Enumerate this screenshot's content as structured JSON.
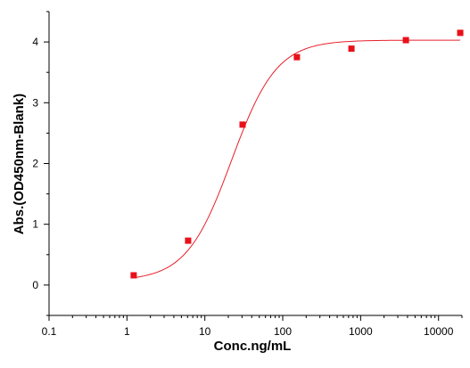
{
  "chart_data": {
    "type": "scatter",
    "title": "",
    "xlabel": "Conc.ng/mL",
    "ylabel": "Abs.(OD450nm-Blank)",
    "x_scale": "log",
    "xlim": [
      0.1,
      20000
    ],
    "ylim": [
      -0.5,
      4.5
    ],
    "x_ticks": [
      {
        "value": 0.1,
        "label": "0.1"
      },
      {
        "value": 1,
        "label": "1"
      },
      {
        "value": 10,
        "label": "10"
      },
      {
        "value": 100,
        "label": "100"
      },
      {
        "value": 1000,
        "label": "1000"
      },
      {
        "value": 10000,
        "label": "10000"
      }
    ],
    "y_ticks": [
      {
        "value": 0,
        "label": "0"
      },
      {
        "value": 1,
        "label": "1"
      },
      {
        "value": 2,
        "label": "2"
      },
      {
        "value": 3,
        "label": "3"
      },
      {
        "value": 4,
        "label": "4"
      }
    ],
    "series": [
      {
        "points": [
          {
            "x": 1.22,
            "y": 0.16
          },
          {
            "x": 6.1,
            "y": 0.73
          },
          {
            "x": 30.5,
            "y": 2.64
          },
          {
            "x": 152,
            "y": 3.75
          },
          {
            "x": 762,
            "y": 3.89
          },
          {
            "x": 3810,
            "y": 4.03
          },
          {
            "x": 19000,
            "y": 4.15
          }
        ],
        "fit": {
          "model": "4PL",
          "bottom": 0.07,
          "top": 4.03,
          "ec50": 22,
          "hill": 1.5
        },
        "color": "#e8101a"
      }
    ],
    "grid": false,
    "legend": "none"
  }
}
